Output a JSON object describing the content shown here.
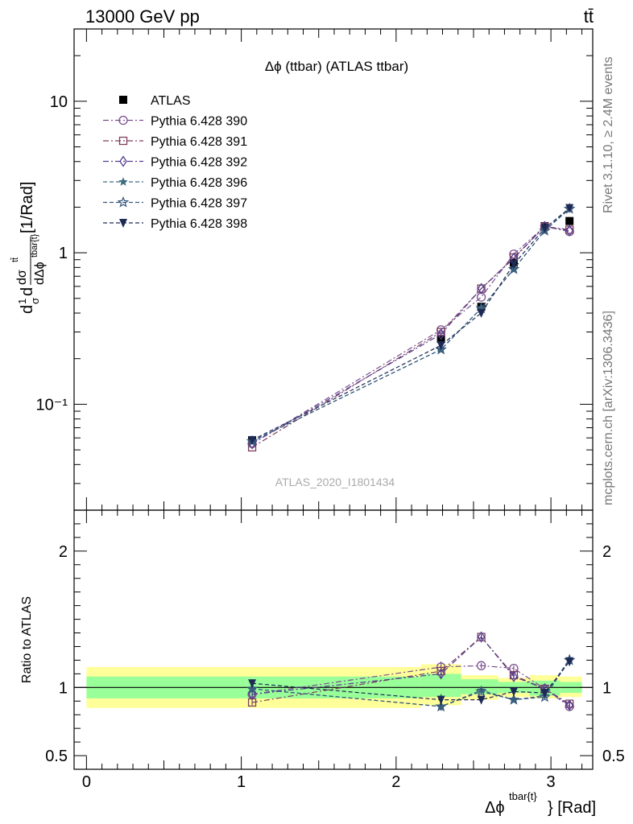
{
  "header": {
    "left": "13000 GeV pp",
    "right": "tt̄"
  },
  "side": {
    "rivet": "Rivet 3.1.10, ≥ 2.4M events",
    "site": "mcplots.cern.ch [arXiv:1306.3436]"
  },
  "chart_data": [
    {
      "type": "line",
      "title": "Δϕ (ttbar) (ATLAS ttbar)",
      "watermark": "ATLAS_2020_I1801434",
      "ylabel_lines": [
        "d",
        "1",
        "σ",
        "d",
        "dσ",
        "tt̄",
        "dΔϕ",
        "tbar{t}",
        " [1/Rad]"
      ],
      "ylabel": "1/σ dσ^tt/dΔϕ^tbar{t} [1/Rad]",
      "yscale": "log",
      "ylim": [
        0.02,
        30
      ],
      "xlim": [
        -0.08,
        3.27
      ],
      "ytick_labels": [
        "10",
        "1",
        "10⁻¹"
      ],
      "ytick_values": [
        10,
        1,
        0.1
      ],
      "x": [
        1.07,
        2.29,
        2.55,
        2.76,
        2.96,
        3.12
      ],
      "legend_position": "top-left",
      "series": [
        {
          "name": "ATLAS",
          "marker": "filled-square",
          "color": "#000000",
          "values": [
            0.058,
            0.27,
            0.44,
            0.86,
            1.5,
            1.62
          ]
        },
        {
          "name": "Pythia 6.428 390",
          "marker": "open-circle",
          "color": "#7b4f8e",
          "dash": "dashdot",
          "values": [
            0.055,
            0.31,
            0.51,
            0.98,
            1.49,
            1.38
          ]
        },
        {
          "name": "Pythia 6.428 391",
          "marker": "open-square",
          "color": "#7e3e5e",
          "dash": "dashdot",
          "values": [
            0.052,
            0.3,
            0.58,
            0.93,
            1.49,
            1.42
          ]
        },
        {
          "name": "Pythia 6.428 392",
          "marker": "open-diamond",
          "color": "#553d8e",
          "dash": "dashdot",
          "values": [
            0.055,
            0.29,
            0.58,
            0.92,
            1.49,
            1.4
          ]
        },
        {
          "name": "Pythia 6.428 396",
          "marker": "filled-star",
          "color": "#3e6d80",
          "dash": "dashed",
          "values": [
            0.057,
            0.23,
            0.43,
            0.78,
            1.4,
            1.97
          ]
        },
        {
          "name": "Pythia 6.428 397",
          "marker": "open-star",
          "color": "#36567c",
          "dash": "dashed",
          "values": [
            0.057,
            0.23,
            0.43,
            0.78,
            1.4,
            1.95
          ]
        },
        {
          "name": "Pythia 6.428 398",
          "marker": "filled-triangle-down",
          "color": "#1d2a54",
          "dash": "dashed",
          "values": [
            0.058,
            0.245,
            0.4,
            0.84,
            1.45,
            1.97
          ]
        }
      ]
    },
    {
      "type": "line",
      "ylabel": "Ratio to ATLAS",
      "xlabel_main": "Δϕ",
      "xlabel_sup": "tbar{t}",
      "xlabel_suffix": "} [Rad]",
      "ylim": [
        0.4,
        2.3
      ],
      "xlim": [
        -0.08,
        3.27
      ],
      "ytick_values": [
        2,
        1,
        0.5
      ],
      "ytick_labels": [
        "2",
        "1",
        "0.5"
      ],
      "xtick_values": [
        0,
        1,
        2,
        3
      ],
      "xtick_labels": [
        "0",
        "1",
        "2",
        "3"
      ],
      "reference_line": 1,
      "uncertainty_bands": {
        "edges": [
          0,
          2.16,
          2.42,
          2.66,
          2.86,
          3.06,
          3.2
        ],
        "inner": [
          [
            0.92,
            1.08
          ],
          [
            0.93,
            1.1
          ],
          [
            0.95,
            1.06
          ],
          [
            0.96,
            1.04
          ],
          [
            0.94,
            1.05
          ],
          [
            0.96,
            1.04
          ]
        ],
        "outer": [
          [
            0.85,
            1.15
          ],
          [
            0.87,
            1.17
          ],
          [
            0.91,
            1.09
          ],
          [
            0.93,
            1.07
          ],
          [
            0.92,
            1.09
          ],
          [
            0.93,
            1.08
          ]
        ],
        "inner_color": "#99ff99",
        "outer_color": "#ffff99"
      },
      "x": [
        1.07,
        2.29,
        2.55,
        2.76,
        2.96,
        3.12
      ],
      "series": [
        {
          "name": "Pythia 6.428 390",
          "values": [
            0.95,
            1.15,
            1.16,
            1.14,
            0.99,
            0.86
          ],
          "errors": [
            0.04,
            0.04,
            0.02,
            0.02,
            0.02,
            0.02
          ]
        },
        {
          "name": "Pythia 6.428 391",
          "values": [
            0.89,
            1.12,
            1.37,
            1.09,
            0.99,
            0.88
          ],
          "errors": [
            0.02,
            0.03,
            0.02,
            0.02,
            0.02,
            0.02
          ]
        },
        {
          "name": "Pythia 6.428 392",
          "values": [
            0.95,
            1.1,
            1.37,
            1.08,
            0.99,
            0.87
          ],
          "errors": [
            0.02,
            0.03,
            0.02,
            0.02,
            0.02,
            0.02
          ]
        },
        {
          "name": "Pythia 6.428 396",
          "values": [
            0.99,
            0.86,
            0.98,
            0.91,
            0.94,
            1.21
          ],
          "errors": [
            0.03,
            0.03,
            0.02,
            0.02,
            0.02,
            0.03
          ]
        },
        {
          "name": "Pythia 6.428 397",
          "values": [
            0.99,
            0.86,
            0.97,
            0.91,
            0.93,
            1.2
          ],
          "errors": [
            0.03,
            0.03,
            0.02,
            0.02,
            0.02,
            0.03
          ]
        },
        {
          "name": "Pythia 6.428 398",
          "values": [
            1.03,
            0.91,
            0.91,
            0.97,
            0.96,
            1.19
          ],
          "errors": [
            0.03,
            0.04,
            0.03,
            0.02,
            0.02,
            0.03
          ]
        }
      ]
    }
  ]
}
